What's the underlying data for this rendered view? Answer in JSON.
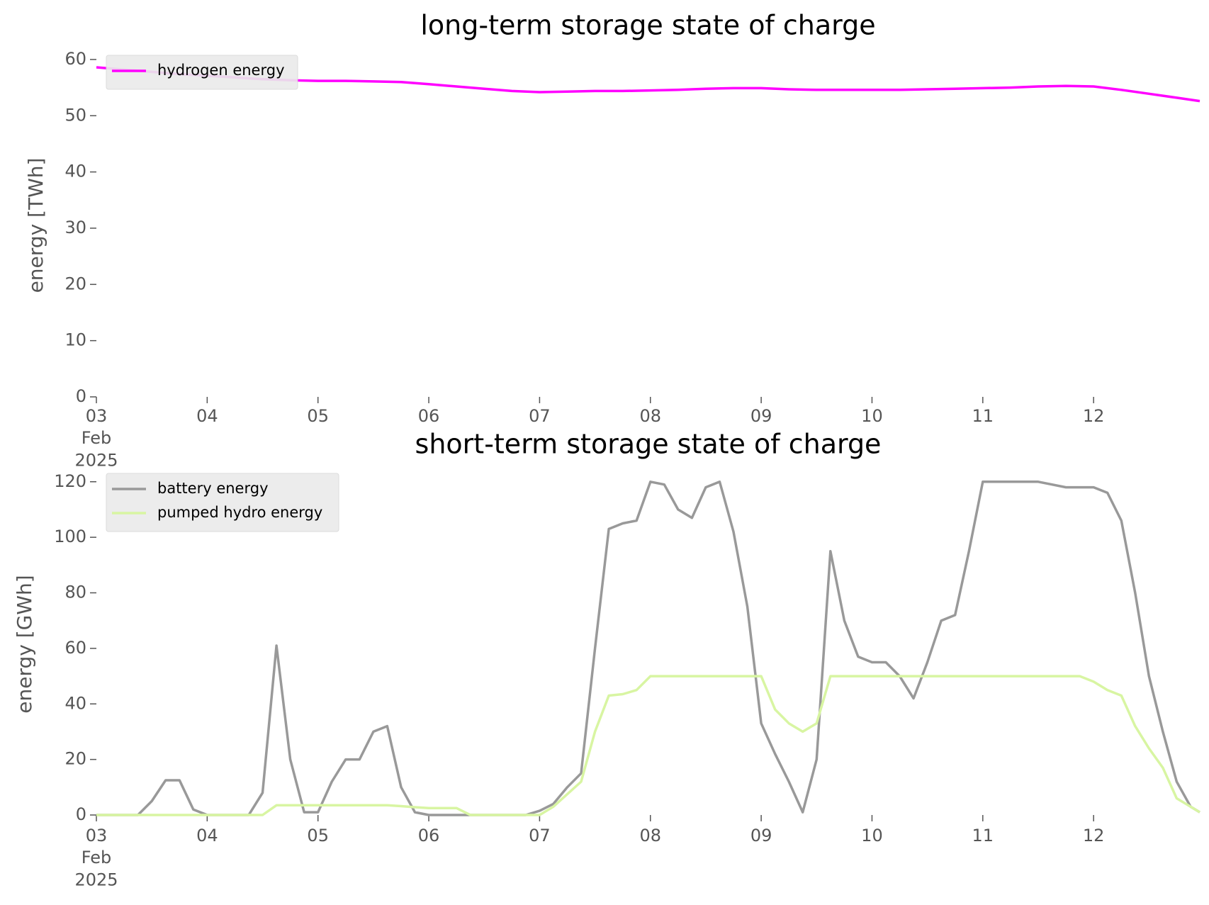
{
  "chart_data": [
    {
      "type": "line",
      "title": "long-term storage state of charge",
      "ylabel": "energy [TWh]",
      "x": [
        "2025-02-03T00:00",
        "2025-02-03T06:00",
        "2025-02-03T12:00",
        "2025-02-03T18:00",
        "2025-02-04T00:00",
        "2025-02-04T06:00",
        "2025-02-04T12:00",
        "2025-02-04T18:00",
        "2025-02-05T00:00",
        "2025-02-05T06:00",
        "2025-02-05T12:00",
        "2025-02-05T18:00",
        "2025-02-06T00:00",
        "2025-02-06T06:00",
        "2025-02-06T12:00",
        "2025-02-06T18:00",
        "2025-02-07T00:00",
        "2025-02-07T06:00",
        "2025-02-07T12:00",
        "2025-02-07T18:00",
        "2025-02-08T00:00",
        "2025-02-08T06:00",
        "2025-02-08T12:00",
        "2025-02-08T18:00",
        "2025-02-09T00:00",
        "2025-02-09T06:00",
        "2025-02-09T12:00",
        "2025-02-09T18:00",
        "2025-02-10T00:00",
        "2025-02-10T06:00",
        "2025-02-10T12:00",
        "2025-02-10T18:00",
        "2025-02-11T00:00",
        "2025-02-11T06:00",
        "2025-02-11T12:00",
        "2025-02-11T18:00",
        "2025-02-12T00:00",
        "2025-02-12T06:00",
        "2025-02-12T12:00",
        "2025-02-12T18:00",
        "2025-02-12T23:00"
      ],
      "series": [
        {
          "name": "hydrogen energy",
          "color": "#ff00ff",
          "values": [
            58.6,
            58.2,
            57.8,
            57.4,
            57.1,
            56.8,
            56.5,
            56.3,
            56.2,
            56.2,
            56.1,
            56.0,
            55.6,
            55.2,
            54.8,
            54.4,
            54.2,
            54.3,
            54.4,
            54.4,
            54.5,
            54.6,
            54.8,
            54.9,
            54.9,
            54.7,
            54.6,
            54.6,
            54.6,
            54.6,
            54.7,
            54.8,
            54.9,
            55.0,
            55.2,
            55.3,
            55.2,
            54.6,
            53.9,
            53.2,
            52.6
          ]
        }
      ],
      "xlim": [
        "2025-02-03T00:00",
        "2025-02-12T23:00"
      ],
      "xticks": [
        {
          "value": "2025-02-03T00:00",
          "label": "03\nFeb\n2025"
        },
        {
          "value": "2025-02-04T00:00",
          "label": "04"
        },
        {
          "value": "2025-02-05T00:00",
          "label": "05"
        },
        {
          "value": "2025-02-06T00:00",
          "label": "06"
        },
        {
          "value": "2025-02-07T00:00",
          "label": "07"
        },
        {
          "value": "2025-02-08T00:00",
          "label": "08"
        },
        {
          "value": "2025-02-09T00:00",
          "label": "09"
        },
        {
          "value": "2025-02-10T00:00",
          "label": "10"
        },
        {
          "value": "2025-02-11T00:00",
          "label": "11"
        },
        {
          "value": "2025-02-12T00:00",
          "label": "12"
        }
      ],
      "ylim": [
        0,
        61
      ],
      "yticks": [
        0,
        10,
        20,
        30,
        40,
        50,
        60
      ],
      "legend": "upper left"
    },
    {
      "type": "line",
      "title": "short-term storage state of charge",
      "ylabel": "energy [GWh]",
      "x": [
        "2025-02-03T00:00",
        "2025-02-03T03:00",
        "2025-02-03T06:00",
        "2025-02-03T09:00",
        "2025-02-03T12:00",
        "2025-02-03T15:00",
        "2025-02-03T18:00",
        "2025-02-03T21:00",
        "2025-02-04T00:00",
        "2025-02-04T03:00",
        "2025-02-04T06:00",
        "2025-02-04T09:00",
        "2025-02-04T12:00",
        "2025-02-04T15:00",
        "2025-02-04T18:00",
        "2025-02-04T21:00",
        "2025-02-05T00:00",
        "2025-02-05T03:00",
        "2025-02-05T06:00",
        "2025-02-05T09:00",
        "2025-02-05T12:00",
        "2025-02-05T15:00",
        "2025-02-05T18:00",
        "2025-02-05T21:00",
        "2025-02-06T00:00",
        "2025-02-06T03:00",
        "2025-02-06T06:00",
        "2025-02-06T09:00",
        "2025-02-06T12:00",
        "2025-02-06T15:00",
        "2025-02-06T18:00",
        "2025-02-06T21:00",
        "2025-02-07T00:00",
        "2025-02-07T03:00",
        "2025-02-07T06:00",
        "2025-02-07T09:00",
        "2025-02-07T12:00",
        "2025-02-07T15:00",
        "2025-02-07T18:00",
        "2025-02-07T21:00",
        "2025-02-08T00:00",
        "2025-02-08T03:00",
        "2025-02-08T06:00",
        "2025-02-08T09:00",
        "2025-02-08T12:00",
        "2025-02-08T15:00",
        "2025-02-08T18:00",
        "2025-02-08T21:00",
        "2025-02-09T00:00",
        "2025-02-09T03:00",
        "2025-02-09T06:00",
        "2025-02-09T09:00",
        "2025-02-09T12:00",
        "2025-02-09T15:00",
        "2025-02-09T18:00",
        "2025-02-09T21:00",
        "2025-02-10T00:00",
        "2025-02-10T03:00",
        "2025-02-10T06:00",
        "2025-02-10T09:00",
        "2025-02-10T12:00",
        "2025-02-10T15:00",
        "2025-02-10T18:00",
        "2025-02-10T21:00",
        "2025-02-11T00:00",
        "2025-02-11T03:00",
        "2025-02-11T06:00",
        "2025-02-11T09:00",
        "2025-02-11T12:00",
        "2025-02-11T15:00",
        "2025-02-11T18:00",
        "2025-02-11T21:00",
        "2025-02-12T00:00",
        "2025-02-12T03:00",
        "2025-02-12T06:00",
        "2025-02-12T09:00",
        "2025-02-12T12:00",
        "2025-02-12T15:00",
        "2025-02-12T18:00",
        "2025-02-12T21:00",
        "2025-02-12T23:00"
      ],
      "series": [
        {
          "name": "battery energy",
          "color": "#999999",
          "values": [
            0,
            0,
            0,
            0,
            5,
            12.5,
            12.5,
            2,
            0,
            0,
            0,
            0,
            8,
            61,
            20,
            1,
            1,
            12,
            20,
            20,
            30,
            32,
            10,
            1,
            0,
            0,
            0,
            0,
            0,
            0,
            0,
            0,
            1.5,
            4,
            10,
            15,
            60,
            103,
            105,
            106,
            120,
            119,
            110,
            107,
            118,
            120,
            102,
            75,
            33,
            22,
            12,
            1,
            20,
            95,
            70,
            57,
            55,
            55,
            50,
            42,
            55,
            70,
            72,
            95,
            120,
            120,
            120,
            120,
            120,
            119,
            118,
            118,
            118,
            116,
            106,
            80,
            50,
            30,
            12,
            3,
            1
          ]
        },
        {
          "name": "pumped hydro energy",
          "color": "#d8f5a2",
          "values": [
            0,
            0,
            0,
            0,
            0,
            0,
            0,
            0,
            0,
            0,
            0,
            0,
            0,
            3.5,
            3.5,
            3.5,
            3.5,
            3.5,
            3.5,
            3.5,
            3.5,
            3.5,
            3.2,
            2.8,
            2.5,
            2.5,
            2.5,
            0,
            0,
            0,
            0,
            0,
            0,
            3,
            7.5,
            12,
            30,
            43,
            43.5,
            45,
            50,
            50,
            50,
            50,
            50,
            50,
            50,
            50,
            50,
            38,
            33,
            30,
            33,
            50,
            50,
            50,
            50,
            50,
            50,
            50,
            50,
            50,
            50,
            50,
            50,
            50,
            50,
            50,
            50,
            50,
            50,
            50,
            48,
            45,
            43,
            32,
            24,
            17,
            6,
            3,
            1
          ]
        }
      ],
      "xlim": [
        "2025-02-03T00:00",
        "2025-02-12T23:00"
      ],
      "xticks": [
        {
          "value": "2025-02-03T00:00",
          "label": "03\nFeb\n2025"
        },
        {
          "value": "2025-02-04T00:00",
          "label": "04"
        },
        {
          "value": "2025-02-05T00:00",
          "label": "05"
        },
        {
          "value": "2025-02-06T00:00",
          "label": "06"
        },
        {
          "value": "2025-02-07T00:00",
          "label": "07"
        },
        {
          "value": "2025-02-08T00:00",
          "label": "08"
        },
        {
          "value": "2025-02-09T00:00",
          "label": "09"
        },
        {
          "value": "2025-02-10T00:00",
          "label": "10"
        },
        {
          "value": "2025-02-11T00:00",
          "label": "11"
        },
        {
          "value": "2025-02-12T00:00",
          "label": "12"
        }
      ],
      "ylim": [
        0,
        123
      ],
      "yticks": [
        0,
        20,
        40,
        60,
        80,
        100,
        120
      ],
      "legend": "upper left"
    }
  ]
}
